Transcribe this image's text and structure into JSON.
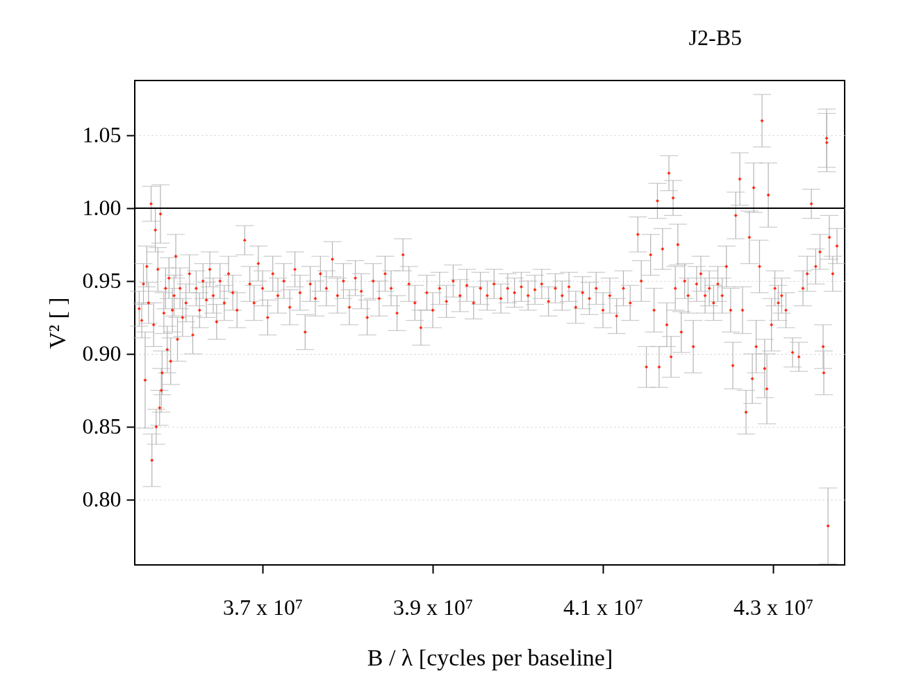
{
  "chart_data": {
    "type": "scatter",
    "title": "J2-B5",
    "xlabel": "B / λ [cycles per baseline]",
    "ylabel": "V² [ ]",
    "marker": "diamond",
    "grid": "y",
    "xlim": [
      35498000,
      43840000
    ],
    "ylim": [
      0.7552,
      1.0876
    ],
    "xticks": [
      {
        "value": 37000000,
        "label": "3.7 x 10⁷"
      },
      {
        "value": 39000000,
        "label": "3.9 x 10⁷"
      },
      {
        "value": 41000000,
        "label": "4.1 x 10⁷"
      },
      {
        "value": 43000000,
        "label": "4.3 x 10⁷"
      }
    ],
    "yticks": [
      {
        "value": 0.8,
        "label": "0.80"
      },
      0.85,
      {
        "value": 0.9,
        "label": "0.90"
      },
      0.95,
      {
        "value": 1.0,
        "label": "1.00"
      },
      1.05
    ],
    "ref_lines": [
      {
        "axis": "y",
        "value": 1.0
      }
    ],
    "x": [
      35550000,
      35580000,
      35600000,
      35620000,
      35640000,
      35660000,
      35690000,
      35700000,
      35720000,
      35740000,
      35750000,
      35770000,
      35790000,
      35800000,
      35810000,
      35820000,
      35840000,
      35860000,
      35880000,
      35900000,
      35920000,
      35940000,
      35960000,
      35980000,
      36000000,
      36030000,
      36060000,
      36100000,
      36140000,
      36180000,
      36220000,
      36260000,
      36300000,
      36340000,
      36380000,
      36420000,
      36460000,
      36500000,
      36550000,
      36600000,
      36650000,
      36700000,
      36790000,
      36850000,
      36900000,
      36950000,
      37000000,
      37060000,
      37120000,
      37180000,
      37250000,
      37320000,
      37380000,
      37440000,
      37500000,
      37560000,
      37620000,
      37680000,
      37750000,
      37820000,
      37880000,
      37950000,
      38020000,
      38090000,
      38160000,
      38230000,
      38300000,
      38370000,
      38440000,
      38510000,
      38580000,
      38650000,
      38720000,
      38790000,
      38860000,
      38930000,
      39000000,
      39080000,
      39160000,
      39240000,
      39320000,
      39400000,
      39480000,
      39560000,
      39640000,
      39720000,
      39800000,
      39880000,
      39960000,
      40040000,
      40120000,
      40200000,
      40280000,
      40360000,
      40440000,
      40520000,
      40600000,
      40680000,
      40760000,
      40840000,
      40920000,
      41000000,
      41080000,
      41160000,
      41240000,
      41320000,
      41410000,
      41450000,
      41510000,
      41560000,
      41600000,
      41640000,
      41660000,
      41700000,
      41750000,
      41775000,
      41800000,
      41824000,
      41850000,
      41880000,
      41920000,
      41960000,
      42000000,
      42061000,
      42100000,
      42150000,
      42200000,
      42250000,
      42300000,
      42350000,
      42400000,
      42450000,
      42500000,
      42526000,
      42560000,
      42608000,
      42640000,
      42681000,
      42720000,
      42755000,
      42771000,
      42800000,
      42840000,
      42869000,
      42900000,
      42926000,
      42943000,
      42980000,
      43020000,
      43060000,
      43100000,
      43150000,
      43228000,
      43302000,
      43350000,
      43400000,
      43449000,
      43500000,
      43550000,
      43587000,
      43595000,
      43628000,
      43630000,
      43645000,
      43660000,
      43700000,
      43750000
    ],
    "series": [
      {
        "color": "#ff2a10",
        "values": [
          0.931,
          0.923,
          0.948,
          0.882,
          0.96,
          0.935,
          1.003,
          0.827,
          0.92,
          0.985,
          0.85,
          0.958,
          0.863,
          0.996,
          0.875,
          0.887,
          0.928,
          0.945,
          0.903,
          0.952,
          0.895,
          0.93,
          0.94,
          0.967,
          0.91,
          0.945,
          0.925,
          0.935,
          0.955,
          0.913,
          0.945,
          0.93,
          0.95,
          0.937,
          0.958,
          0.94,
          0.922,
          0.95,
          0.935,
          0.955,
          0.942,
          0.93,
          0.978,
          0.948,
          0.935,
          0.962,
          0.945,
          0.925,
          0.955,
          0.94,
          0.95,
          0.932,
          0.958,
          0.942,
          0.915,
          0.948,
          0.938,
          0.955,
          0.945,
          0.965,
          0.94,
          0.95,
          0.932,
          0.952,
          0.943,
          0.925,
          0.95,
          0.938,
          0.955,
          0.945,
          0.928,
          0.968,
          0.948,
          0.935,
          0.918,
          0.942,
          0.93,
          0.945,
          0.936,
          0.95,
          0.94,
          0.947,
          0.935,
          0.945,
          0.94,
          0.948,
          0.938,
          0.945,
          0.942,
          0.946,
          0.94,
          0.944,
          0.948,
          0.936,
          0.945,
          0.94,
          0.946,
          0.932,
          0.942,
          0.938,
          0.945,
          0.93,
          0.94,
          0.926,
          0.945,
          0.935,
          0.982,
          0.95,
          0.891,
          0.968,
          0.93,
          1.005,
          0.891,
          0.972,
          0.92,
          1.024,
          0.898,
          1.007,
          0.945,
          0.975,
          0.915,
          0.95,
          0.94,
          0.905,
          0.948,
          0.955,
          0.94,
          0.945,
          0.935,
          0.948,
          0.94,
          0.96,
          0.93,
          0.892,
          0.995,
          1.02,
          0.93,
          0.86,
          0.98,
          0.883,
          1.014,
          0.905,
          0.96,
          1.06,
          0.89,
          0.876,
          1.009,
          0.92,
          0.945,
          0.935,
          0.94,
          0.93,
          0.901,
          0.898,
          0.945,
          0.955,
          1.003,
          0.96,
          0.97,
          0.905,
          0.887,
          1.048,
          1.045,
          0.782,
          0.98,
          0.955,
          0.974
        ],
        "errors": [
          0.012,
          0.012,
          0.014,
          0.033,
          0.014,
          0.014,
          0.012,
          0.018,
          0.015,
          0.015,
          0.012,
          0.015,
          0.012,
          0.02,
          0.015,
          0.015,
          0.014,
          0.014,
          0.016,
          0.014,
          0.016,
          0.015,
          0.014,
          0.015,
          0.015,
          0.014,
          0.013,
          0.013,
          0.013,
          0.013,
          0.012,
          0.012,
          0.012,
          0.012,
          0.012,
          0.012,
          0.012,
          0.012,
          0.012,
          0.012,
          0.012,
          0.012,
          0.01,
          0.012,
          0.012,
          0.012,
          0.012,
          0.012,
          0.012,
          0.012,
          0.012,
          0.012,
          0.012,
          0.012,
          0.012,
          0.012,
          0.012,
          0.012,
          0.012,
          0.012,
          0.012,
          0.012,
          0.012,
          0.012,
          0.012,
          0.012,
          0.012,
          0.012,
          0.012,
          0.012,
          0.012,
          0.011,
          0.012,
          0.012,
          0.012,
          0.012,
          0.012,
          0.011,
          0.011,
          0.011,
          0.011,
          0.011,
          0.011,
          0.011,
          0.01,
          0.01,
          0.01,
          0.01,
          0.01,
          0.01,
          0.01,
          0.01,
          0.01,
          0.01,
          0.01,
          0.01,
          0.01,
          0.011,
          0.011,
          0.011,
          0.011,
          0.012,
          0.012,
          0.012,
          0.012,
          0.012,
          0.012,
          0.014,
          0.014,
          0.014,
          0.015,
          0.012,
          0.014,
          0.014,
          0.015,
          0.012,
          0.014,
          0.012,
          0.015,
          0.014,
          0.014,
          0.012,
          0.012,
          0.018,
          0.012,
          0.012,
          0.012,
          0.012,
          0.012,
          0.012,
          0.012,
          0.014,
          0.015,
          0.016,
          0.016,
          0.018,
          0.016,
          0.015,
          0.018,
          0.017,
          0.017,
          0.018,
          0.018,
          0.018,
          0.02,
          0.024,
          0.022,
          0.018,
          0.012,
          0.012,
          0.012,
          0.012,
          0.01,
          0.01,
          0.012,
          0.012,
          0.01,
          0.012,
          0.012,
          0.015,
          0.015,
          0.02,
          0.02,
          0.026,
          0.015,
          0.012,
          0.012
        ]
      }
    ]
  }
}
